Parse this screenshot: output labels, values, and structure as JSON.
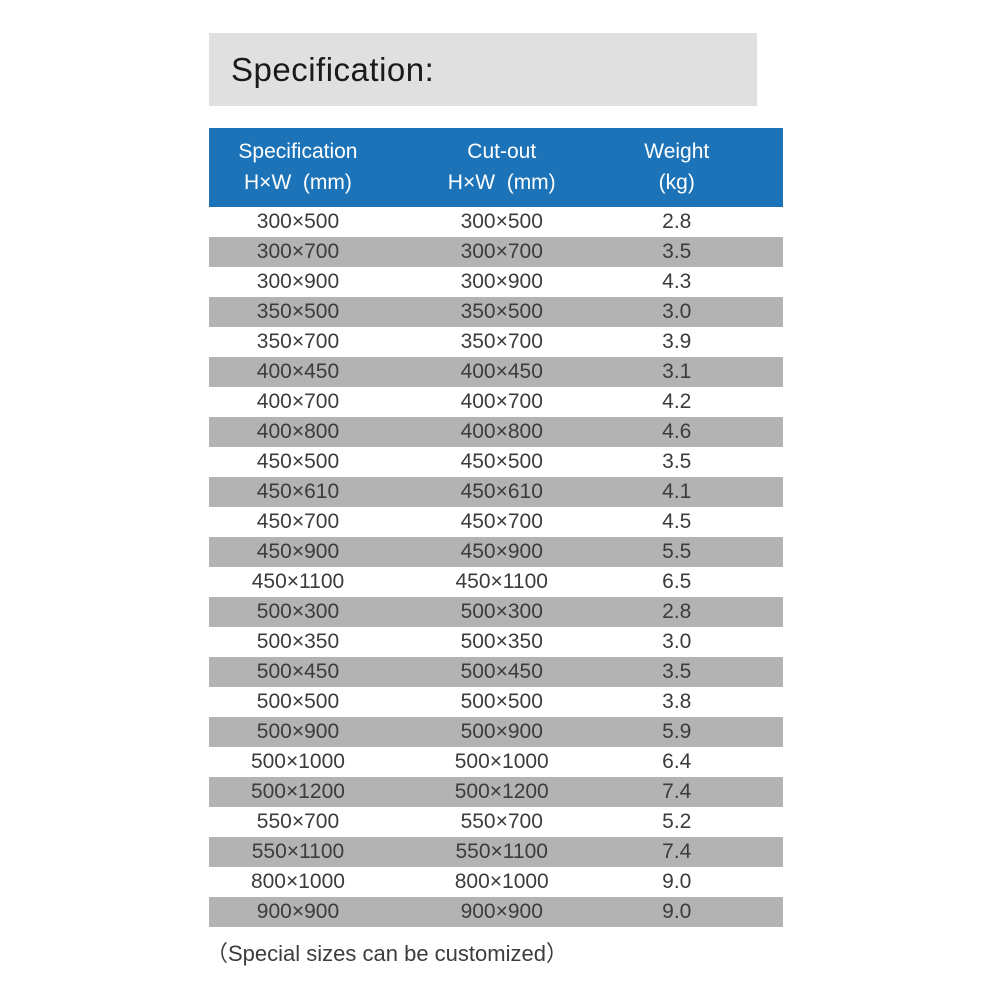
{
  "title": "Specification:",
  "footer_note": "（Special sizes can be customized）",
  "colors": {
    "title_bar_bg": "#e0e0e0",
    "header_bg": "#1d73b8",
    "header_text": "#ffffff",
    "alt_row_bg": "#b3b3b3",
    "body_text": "#3c3c3c",
    "title_text": "#1a1a1a"
  },
  "chart_data": {
    "type": "table",
    "title": "Specification:",
    "columns": [
      {
        "line1": "Specification",
        "line2": "H×W  (mm)"
      },
      {
        "line1": "Cut-out",
        "line2": "H×W  (mm)"
      },
      {
        "line1": "Weight",
        "line2": "(kg)"
      }
    ],
    "rows": [
      [
        "300×500",
        "300×500",
        "2.8"
      ],
      [
        "300×700",
        "300×700",
        "3.5"
      ],
      [
        "300×900",
        "300×900",
        "4.3"
      ],
      [
        "350×500",
        "350×500",
        "3.0"
      ],
      [
        "350×700",
        "350×700",
        "3.9"
      ],
      [
        "400×450",
        "400×450",
        "3.1"
      ],
      [
        "400×700",
        "400×700",
        "4.2"
      ],
      [
        "400×800",
        "400×800",
        "4.6"
      ],
      [
        "450×500",
        "450×500",
        "3.5"
      ],
      [
        "450×610",
        "450×610",
        "4.1"
      ],
      [
        "450×700",
        "450×700",
        "4.5"
      ],
      [
        "450×900",
        "450×900",
        "5.5"
      ],
      [
        "450×1100",
        "450×1100",
        "6.5"
      ],
      [
        "500×300",
        "500×300",
        "2.8"
      ],
      [
        "500×350",
        "500×350",
        "3.0"
      ],
      [
        "500×450",
        "500×450",
        "3.5"
      ],
      [
        "500×500",
        "500×500",
        "3.8"
      ],
      [
        "500×900",
        "500×900",
        "5.9"
      ],
      [
        "500×1000",
        "500×1000",
        "6.4"
      ],
      [
        "500×1200",
        "500×1200",
        "7.4"
      ],
      [
        "550×700",
        "550×700",
        "5.2"
      ],
      [
        "550×1100",
        "550×1100",
        "7.4"
      ],
      [
        "800×1000",
        "800×1000",
        "9.0"
      ],
      [
        "900×900",
        "900×900",
        "9.0"
      ]
    ],
    "footnote": "（Special sizes can be customized）",
    "layout": {
      "alternating_rows": true,
      "header_position": "top",
      "grid": false
    }
  }
}
